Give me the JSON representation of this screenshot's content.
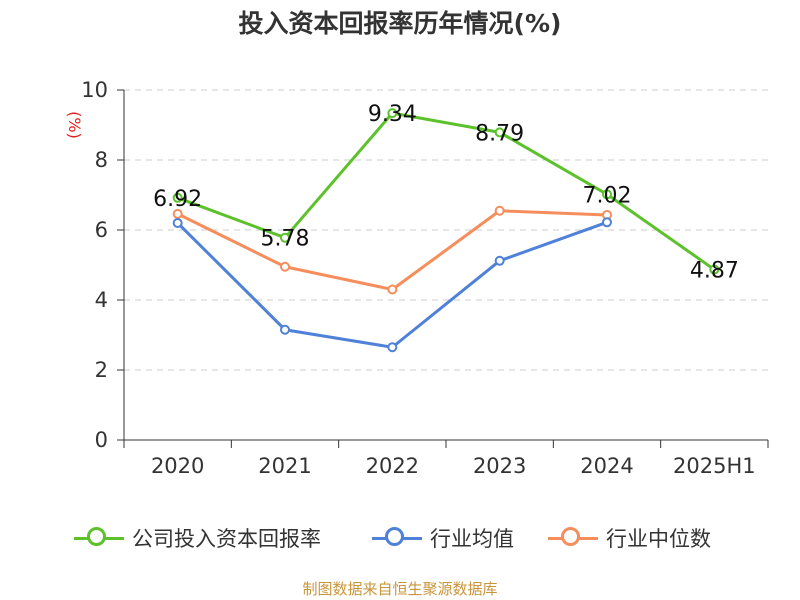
{
  "chart_data": {
    "type": "line",
    "title": "投入资本回报率历年情况(%)",
    "ylabel": "(%)",
    "xlabel": "",
    "categories": [
      "2020",
      "2021",
      "2022",
      "2023",
      "2024",
      "2025H1"
    ],
    "ylim": [
      0,
      10
    ],
    "yticks": [
      0,
      2,
      4,
      6,
      8,
      10
    ],
    "grid": true,
    "legend_position": "bottom",
    "series": [
      {
        "name": "公司投入资本回报率",
        "color": "#5cc12b",
        "values": [
          6.92,
          5.78,
          9.34,
          8.79,
          7.02,
          4.87
        ],
        "labels": [
          "6.92",
          "5.78",
          "9.34",
          "8.79",
          "7.02",
          "4.87"
        ]
      },
      {
        "name": "行业均值",
        "color": "#4f81d9",
        "values": [
          6.2,
          3.15,
          2.65,
          5.12,
          6.22,
          null
        ]
      },
      {
        "name": "行业中位数",
        "color": "#f58e5c",
        "values": [
          6.46,
          4.95,
          4.3,
          6.55,
          6.43,
          null
        ]
      }
    ]
  },
  "source_text": "制图数据来自恒生聚源数据库"
}
